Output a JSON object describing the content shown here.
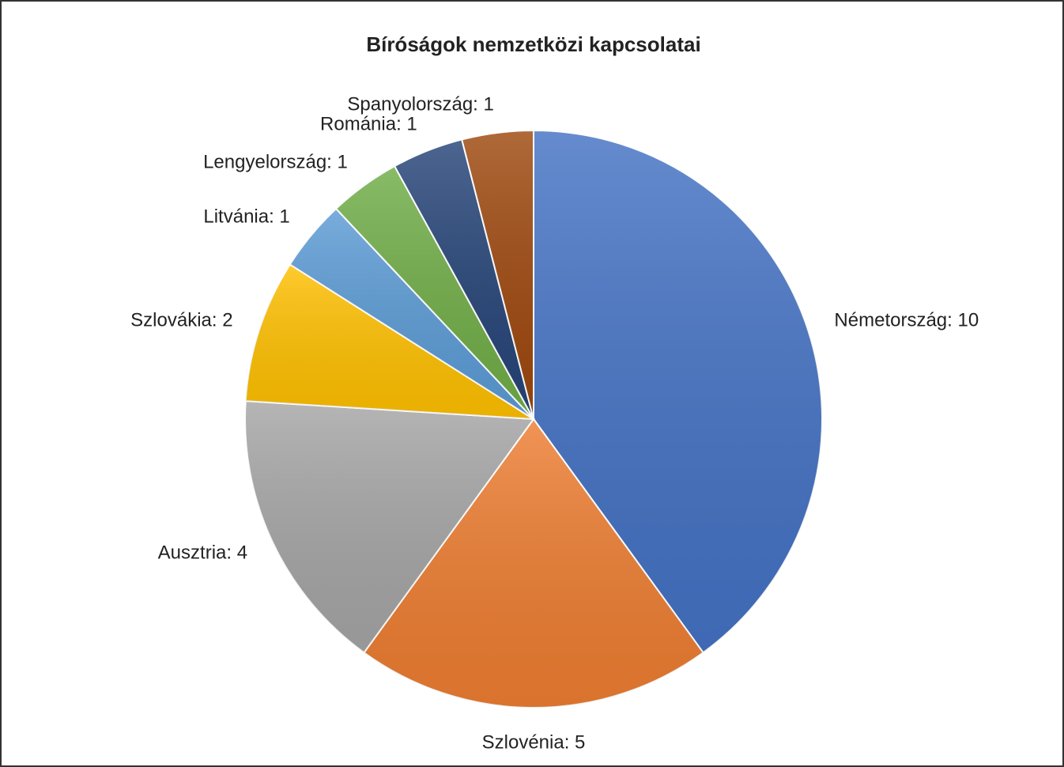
{
  "chart_data": {
    "type": "pie",
    "title": "Bíróságok nemzetközi kapcsolatai",
    "values": [
      10,
      5,
      4,
      2,
      1,
      1,
      1,
      1
    ],
    "value_labels": [
      "Németország: 10",
      "Szlovénia: 5",
      "Ausztria: 4",
      "Szlovákia: 2",
      "Litvánia: 1",
      "Lengyelország: 1",
      "Románia: 1",
      "Spanyolország: 1"
    ],
    "colors": [
      "#4472c4",
      "#ed7d31",
      "#a5a5a5",
      "#ffc000",
      "#5b9bd5",
      "#70ad47",
      "#264478",
      "#9e480e"
    ]
  }
}
